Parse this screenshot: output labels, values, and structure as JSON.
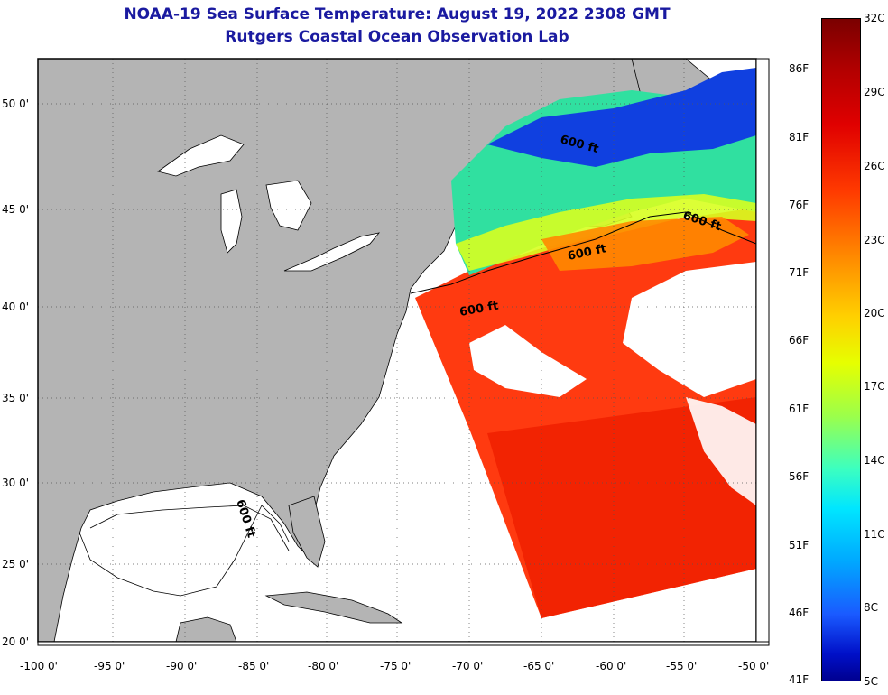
{
  "title": {
    "line1": "NOAA-19 Sea Surface Temperature:  August 19, 2022 2308 GMT",
    "line2": "Rutgers Coastal Ocean Observation Lab"
  },
  "map": {
    "lat_labels": [
      "50 0'",
      "45 0'",
      "40 0'",
      "35 0'",
      "30 0'",
      "25 0'",
      "20 0'"
    ],
    "lon_labels": [
      "-100 0'",
      "-95 0'",
      "-90 0'",
      "-85 0'",
      "-80 0'",
      "-75 0'",
      "-70 0'",
      "-65 0'",
      "-60 0'",
      "-55 0'",
      "-50 0'"
    ],
    "contour_labels": [
      "600 ft",
      "600 ft",
      "600 ft",
      "600 ft",
      "600 ft"
    ],
    "land_color": "#b4b4b4",
    "cloud_color": "#ffffff"
  },
  "colorbar": {
    "fahrenheit": [
      "86F",
      "81F",
      "76F",
      "71F",
      "66F",
      "61F",
      "56F",
      "51F",
      "46F",
      "41F"
    ],
    "celsius": [
      "32C",
      "29C",
      "26C",
      "23C",
      "20C",
      "17C",
      "14C",
      "11C",
      "8C",
      "5C"
    ]
  }
}
